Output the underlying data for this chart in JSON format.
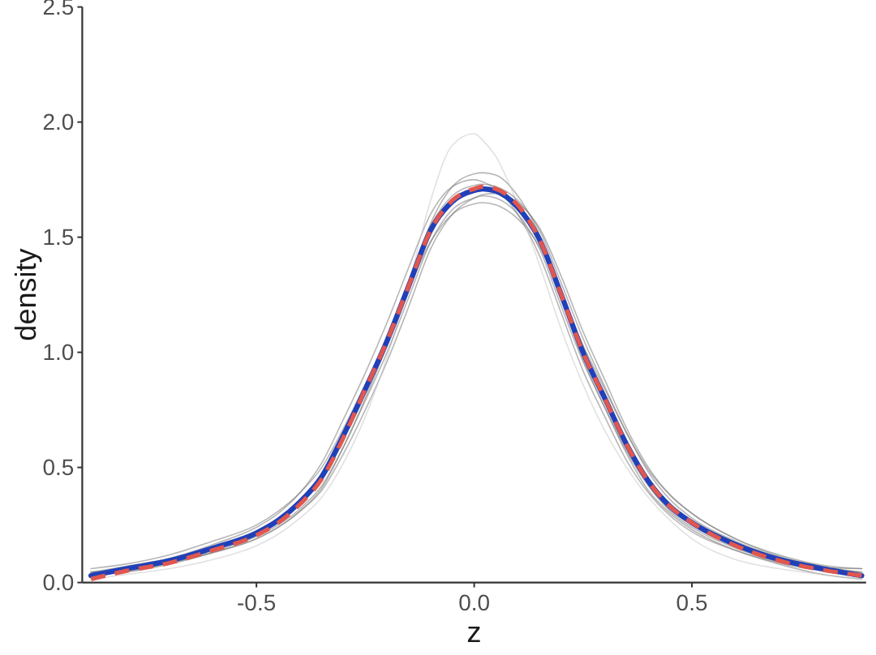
{
  "chart_data": {
    "type": "line",
    "xlabel": "z",
    "ylabel": "density",
    "x": [
      -0.88,
      -0.8,
      -0.7,
      -0.6,
      -0.5,
      -0.45,
      -0.4,
      -0.35,
      -0.3,
      -0.25,
      -0.2,
      -0.15,
      -0.1,
      -0.05,
      0,
      0.02,
      0.05,
      0.1,
      0.15,
      0.2,
      0.25,
      0.3,
      0.35,
      0.4,
      0.45,
      0.5,
      0.6,
      0.7,
      0.8,
      0.89
    ],
    "xlim": [
      -0.9,
      0.9
    ],
    "xticks": [
      {
        "value": -0.5,
        "label": "-0.5"
      },
      {
        "value": 0,
        "label": "0.0"
      },
      {
        "value": 0.5,
        "label": "0.5"
      }
    ],
    "ylim": [
      0,
      2.5
    ],
    "yticks": [
      {
        "value": 0,
        "label": "0.0"
      },
      {
        "value": 0.5,
        "label": "0.5"
      },
      {
        "value": 1,
        "label": "1.0"
      },
      {
        "value": 1.5,
        "label": "1.5"
      },
      {
        "value": 2,
        "label": "2.0"
      },
      {
        "value": 2.5,
        "label": "2.5"
      }
    ],
    "series": [
      {
        "color": "#7a7a7a",
        "values": [
          0.06,
          0.08,
          0.12,
          0.18,
          0.25,
          0.31,
          0.39,
          0.5,
          0.67,
          0.86,
          1.06,
          1.28,
          1.48,
          1.6,
          1.645,
          1.65,
          1.64,
          1.58,
          1.46,
          1.25,
          1.03,
          0.84,
          0.65,
          0.49,
          0.38,
          0.3,
          0.19,
          0.12,
          0.075,
          0.06
        ]
      },
      {
        "color": "#7a7a7a",
        "values": [
          0.03,
          0.045,
          0.08,
          0.13,
          0.19,
          0.24,
          0.31,
          0.41,
          0.59,
          0.8,
          1.03,
          1.29,
          1.56,
          1.72,
          1.775,
          1.78,
          1.77,
          1.68,
          1.51,
          1.24,
          0.97,
          0.76,
          0.56,
          0.4,
          0.3,
          0.23,
          0.14,
          0.08,
          0.035,
          0.015
        ]
      },
      {
        "color": "#7a7a7a",
        "values": [
          0.045,
          0.07,
          0.105,
          0.165,
          0.24,
          0.3,
          0.39,
          0.52,
          0.71,
          0.91,
          1.13,
          1.37,
          1.6,
          1.72,
          1.75,
          1.74,
          1.71,
          1.6,
          1.42,
          1.17,
          0.92,
          0.72,
          0.53,
          0.39,
          0.29,
          0.22,
          0.14,
          0.085,
          0.05,
          0.03
        ]
      },
      {
        "color": "#7a7a7a",
        "values": [
          0.03,
          0.05,
          0.085,
          0.13,
          0.19,
          0.24,
          0.31,
          0.4,
          0.56,
          0.75,
          0.96,
          1.2,
          1.45,
          1.6,
          1.67,
          1.685,
          1.69,
          1.65,
          1.54,
          1.33,
          1.09,
          0.88,
          0.67,
          0.5,
          0.38,
          0.3,
          0.19,
          0.115,
          0.07,
          0.045
        ]
      },
      {
        "color": "#c8c8c8",
        "values": [
          0.015,
          0.035,
          0.06,
          0.1,
          0.16,
          0.21,
          0.28,
          0.37,
          0.52,
          0.72,
          0.98,
          1.3,
          1.66,
          1.9,
          1.95,
          1.92,
          1.85,
          1.64,
          1.38,
          1.1,
          0.86,
          0.66,
          0.5,
          0.37,
          0.27,
          0.19,
          0.1,
          0.06,
          0.035,
          0.015
        ]
      },
      {
        "color": "#7a7a7a",
        "values": [
          0.045,
          0.06,
          0.1,
          0.155,
          0.225,
          0.28,
          0.36,
          0.47,
          0.65,
          0.85,
          1.07,
          1.31,
          1.55,
          1.68,
          1.725,
          1.73,
          1.72,
          1.66,
          1.53,
          1.3,
          1.06,
          0.85,
          0.65,
          0.48,
          0.36,
          0.28,
          0.18,
          0.11,
          0.065,
          0.045
        ]
      },
      {
        "color": "#7a7a7a",
        "values": [
          0.045,
          0.05,
          0.085,
          0.135,
          0.2,
          0.25,
          0.32,
          0.42,
          0.59,
          0.79,
          1.0,
          1.24,
          1.48,
          1.62,
          1.67,
          1.68,
          1.67,
          1.6,
          1.45,
          1.2,
          0.96,
          0.76,
          0.57,
          0.42,
          0.31,
          0.24,
          0.15,
          0.09,
          0.065,
          0.06
        ]
      },
      {
        "color": "#2140b8",
        "values": [
          0.03,
          0.06,
          0.095,
          0.15,
          0.215,
          0.27,
          0.35,
          0.46,
          0.64,
          0.84,
          1.05,
          1.29,
          1.53,
          1.655,
          1.703,
          1.71,
          1.7,
          1.63,
          1.49,
          1.25,
          1.0,
          0.8,
          0.6,
          0.44,
          0.33,
          0.26,
          0.165,
          0.1,
          0.06,
          0.03
        ]
      },
      {
        "color": "#e0574f",
        "line_style": "dashed",
        "values": [
          0.015,
          0.05,
          0.085,
          0.14,
          0.205,
          0.26,
          0.34,
          0.45,
          0.63,
          0.84,
          1.05,
          1.29,
          1.53,
          1.66,
          1.71,
          1.72,
          1.71,
          1.64,
          1.49,
          1.25,
          1.0,
          0.8,
          0.6,
          0.44,
          0.33,
          0.26,
          0.16,
          0.095,
          0.055,
          0.03
        ]
      }
    ]
  }
}
